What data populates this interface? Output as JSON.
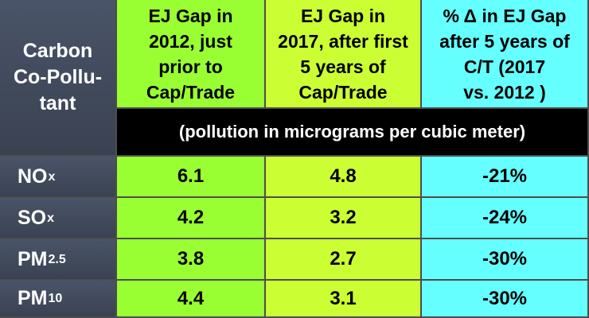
{
  "header": {
    "pollutant_col": "Carbon Co-Pollu-tant",
    "pollutant_lines": [
      "Carbon",
      "Co-Pollu-",
      "tant"
    ],
    "col1_lines": [
      "EJ Gap in",
      "2012, just",
      "prior to",
      "Cap/Trade"
    ],
    "col2_lines": [
      "EJ Gap in",
      "2017, after first",
      "5 years of",
      "Cap/Trade"
    ],
    "col3_lines": [
      "% Δ in EJ Gap",
      "after 5 years of",
      "C/T (2017",
      "vs. 2012 )"
    ]
  },
  "units": "(pollution in micrograms per cubic meter)",
  "rows": [
    {
      "base": "NO",
      "sub": "x",
      "gap_2012": "6.1",
      "gap_2017": "4.8",
      "pct_change": "-21%"
    },
    {
      "base": "SO",
      "sub": "x",
      "gap_2012": "4.2",
      "gap_2017": "3.2",
      "pct_change": "-24%"
    },
    {
      "base": "PM",
      "sub": "2.5",
      "gap_2012": "3.8",
      "gap_2017": "2.7",
      "pct_change": "-30%"
    },
    {
      "base": "PM",
      "sub": "10",
      "gap_2012": "4.4",
      "gap_2017": "3.1",
      "pct_change": "-30%"
    }
  ],
  "colors": {
    "label_column": "#424b5c",
    "col_2012": "#99ff33",
    "col_2017": "#ccff33",
    "col_change": "#66ffff",
    "units_bar": "#000000"
  }
}
